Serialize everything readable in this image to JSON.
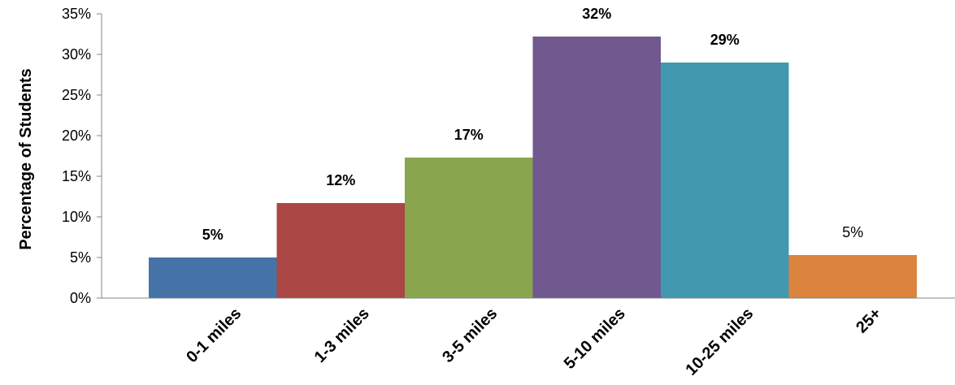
{
  "chart_data": {
    "type": "bar",
    "title": "",
    "xlabel": "",
    "ylabel": "Percentage of Students",
    "ylim": [
      0,
      35
    ],
    "yticks": [
      "0%",
      "5%",
      "10%",
      "15%",
      "20%",
      "25%",
      "30%",
      "35%"
    ],
    "categories": [
      "0-1 miles",
      "1-3 miles",
      "3-5 miles",
      "5-10 miles",
      "10-25 miles",
      "25+"
    ],
    "values": [
      5,
      11.7,
      17.3,
      32.2,
      29,
      5.3
    ],
    "data_labels": [
      "5%",
      "12%",
      "17%",
      "32%",
      "29%",
      "5%"
    ],
    "data_label_bold": [
      true,
      true,
      true,
      true,
      true,
      false
    ],
    "colors": [
      "#4572A7",
      "#AA4643",
      "#89A54E",
      "#71588F",
      "#4198AF",
      "#DB843D"
    ],
    "grid": false,
    "legend": "none"
  }
}
